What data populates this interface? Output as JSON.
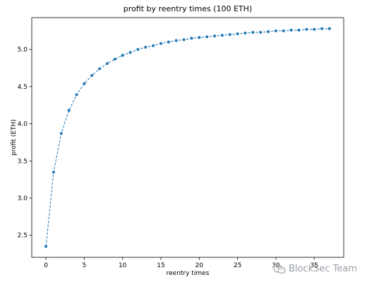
{
  "chart_data": {
    "type": "line",
    "title": "profit by reentry times (100 ETH)",
    "xlabel": "reentry times",
    "ylabel": "profit (ETH)",
    "xlim": [
      -1.85,
      38.85
    ],
    "ylim": [
      2.203,
      5.428
    ],
    "x_ticks": [
      0,
      5,
      10,
      15,
      20,
      25,
      30,
      35
    ],
    "y_ticks": [
      2.5,
      3.0,
      3.5,
      4.0,
      4.5,
      5.0
    ],
    "grid": false,
    "line_style": "dashed",
    "marker": "dot",
    "series": [
      {
        "color": "#1f77b4",
        "x": [
          0,
          1,
          2,
          3,
          4,
          5,
          6,
          7,
          8,
          9,
          10,
          11,
          12,
          13,
          14,
          15,
          16,
          17,
          18,
          19,
          20,
          21,
          22,
          23,
          24,
          25,
          26,
          27,
          28,
          29,
          30,
          31,
          32,
          33,
          34,
          35,
          36,
          37
        ],
        "y": [
          2.35,
          3.35,
          3.87,
          4.18,
          4.39,
          4.54,
          4.65,
          4.74,
          4.81,
          4.87,
          4.92,
          4.96,
          5.0,
          5.03,
          5.05,
          5.08,
          5.1,
          5.12,
          5.13,
          5.15,
          5.16,
          5.17,
          5.18,
          5.19,
          5.2,
          5.21,
          5.22,
          5.23,
          5.23,
          5.24,
          5.25,
          5.25,
          5.26,
          5.26,
          5.27,
          5.27,
          5.28,
          5.28
        ]
      }
    ]
  },
  "watermark": {
    "text": "BlockSec Team",
    "icon": "wechat-icon"
  }
}
